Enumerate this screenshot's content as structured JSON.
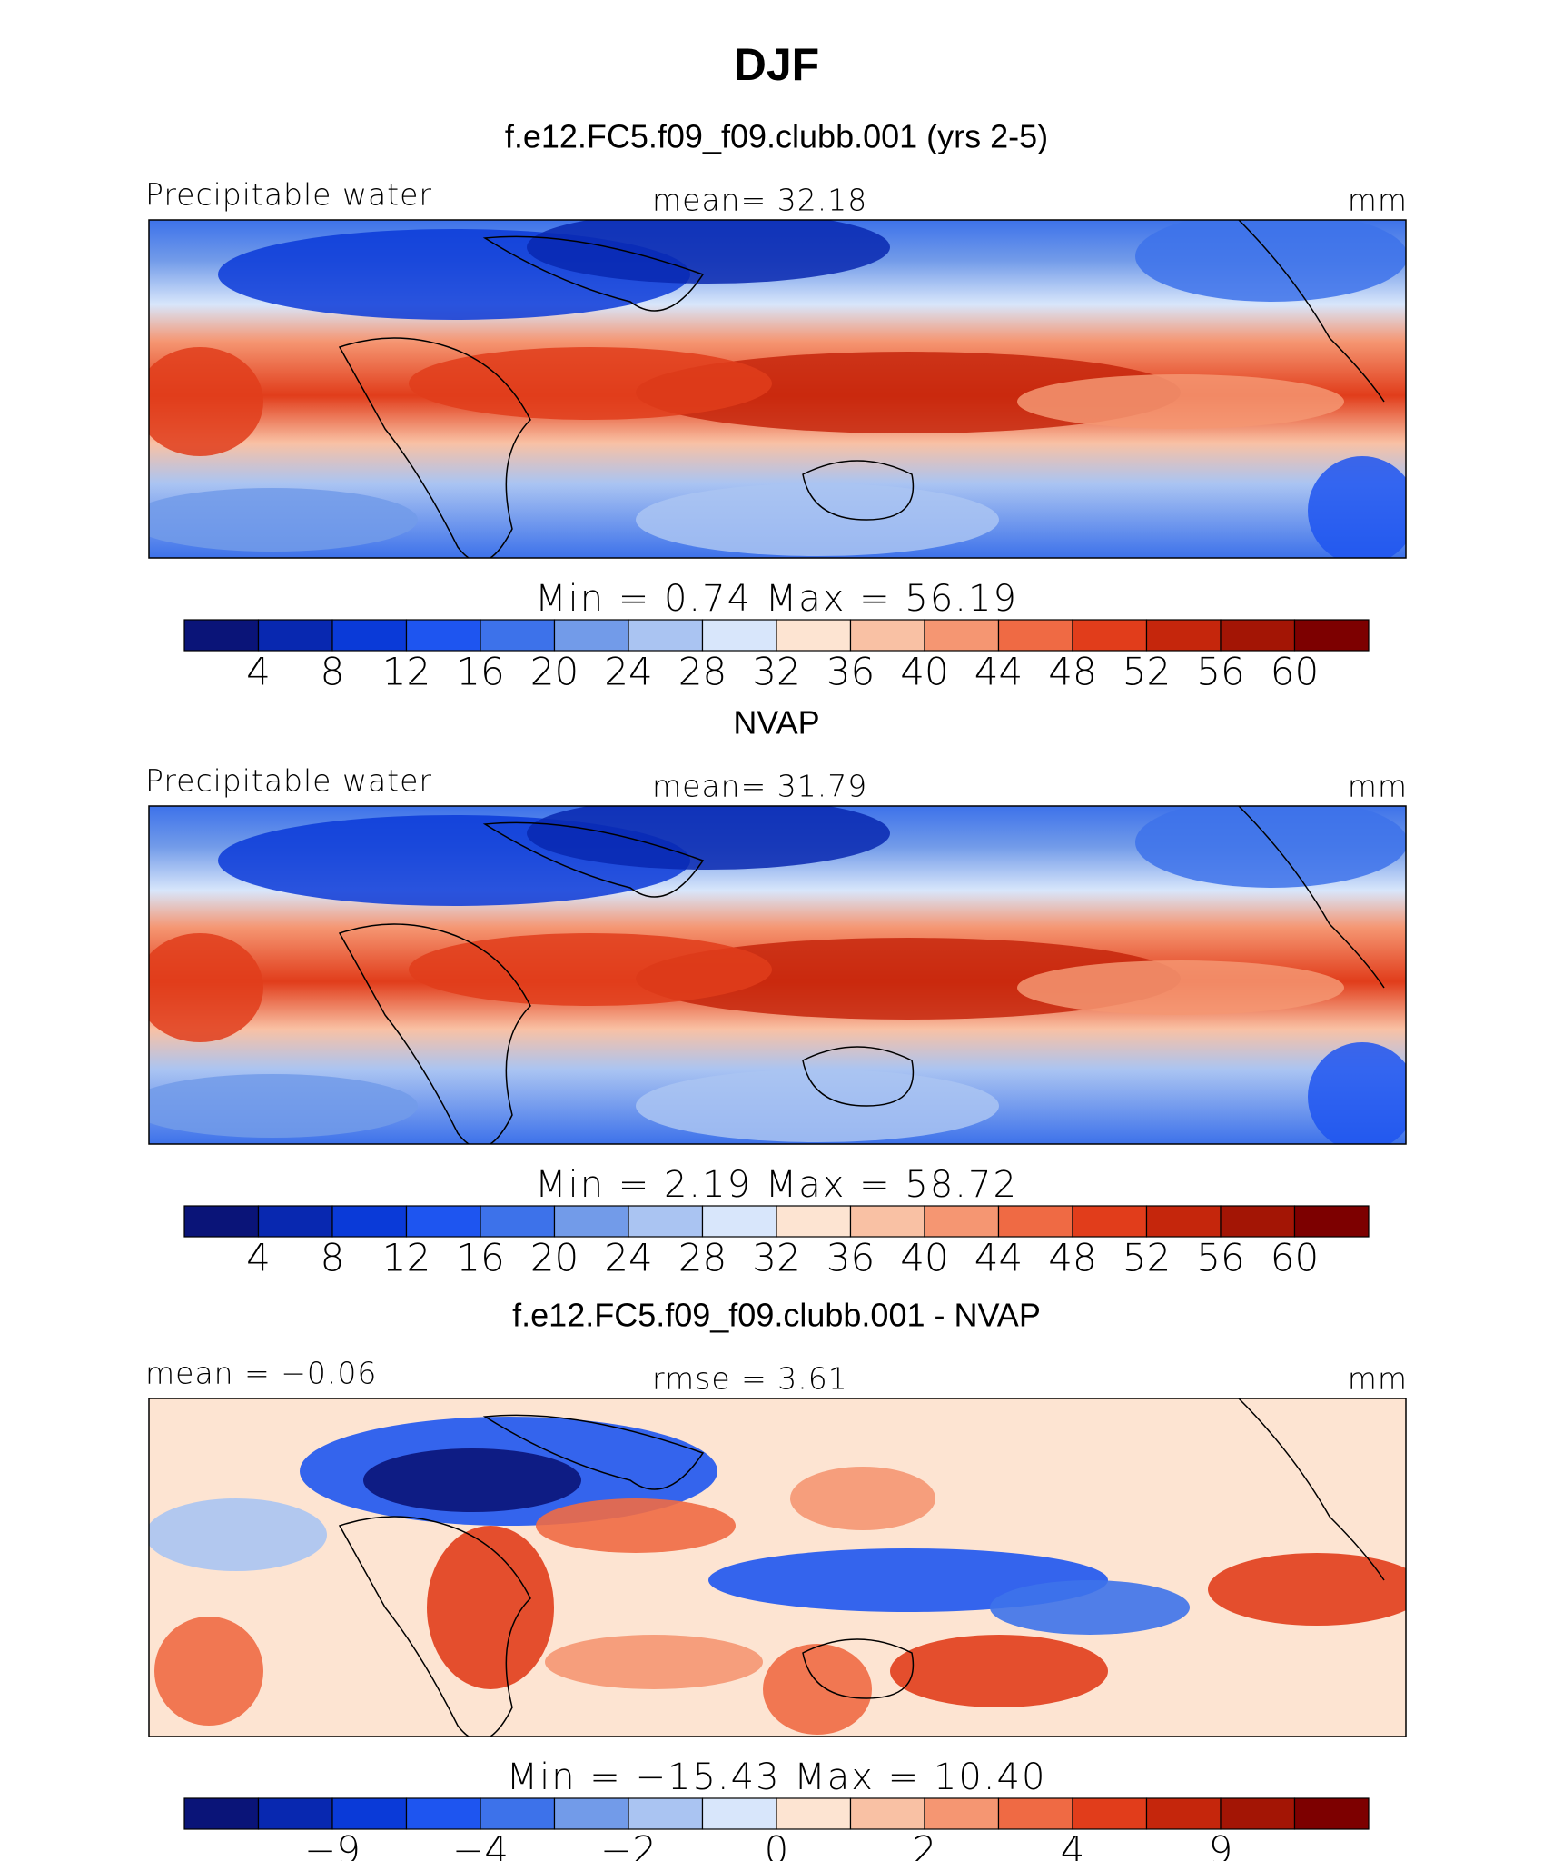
{
  "title": "DJF",
  "panels": [
    {
      "heading": "f.e12.FC5.f09_f09.clubb.001 (yrs 2-5)",
      "left": "Precipitable water",
      "center": "mean=   32.18",
      "right": "mm",
      "stats": "Min =    0.74  Max =   56.19",
      "colorbar": {
        "colors": [
          "#0a1478",
          "#0828b0",
          "#0a3ad8",
          "#1e55f0",
          "#3d72ea",
          "#729be9",
          "#aac4f2",
          "#d8e6fb",
          "#fde4d2",
          "#f9c1a4",
          "#f59672",
          "#ef6a44",
          "#e13d1b",
          "#c5260c",
          "#a31505",
          "#7d0000"
        ],
        "labels": [
          "4",
          "8",
          "12",
          "16",
          "20",
          "24",
          "28",
          "32",
          "36",
          "40",
          "44",
          "48",
          "52",
          "56",
          "60"
        ]
      }
    },
    {
      "heading": "NVAP",
      "left": "Precipitable water",
      "center": "mean=   31.79",
      "right": "mm",
      "stats": "Min =    2.19  Max =   58.72",
      "colorbar": {
        "colors": [
          "#0a1478",
          "#0828b0",
          "#0a3ad8",
          "#1e55f0",
          "#3d72ea",
          "#729be9",
          "#aac4f2",
          "#d8e6fb",
          "#fde4d2",
          "#f9c1a4",
          "#f59672",
          "#ef6a44",
          "#e13d1b",
          "#c5260c",
          "#a31505",
          "#7d0000"
        ],
        "labels": [
          "4",
          "8",
          "12",
          "16",
          "20",
          "24",
          "28",
          "32",
          "36",
          "40",
          "44",
          "48",
          "52",
          "56",
          "60"
        ]
      }
    },
    {
      "heading": "f.e12.FC5.f09_f09.clubb.001 - NVAP",
      "left": "mean =   −0.06",
      "center": "rmse =    3.61",
      "right": "mm",
      "stats": "Min = −15.43  Max =   10.40",
      "colorbar": {
        "colors": [
          "#0a1478",
          "#0828b0",
          "#0a3ad8",
          "#1e55f0",
          "#3d72ea",
          "#729be9",
          "#aac4f2",
          "#d8e6fb",
          "#fde4d2",
          "#f9c1a4",
          "#f59672",
          "#ef6a44",
          "#e13d1b",
          "#c5260c",
          "#a31505",
          "#7d0000"
        ],
        "labels": [
          "−9",
          "−4",
          "−2",
          "0",
          "2",
          "4",
          "9"
        ]
      }
    }
  ]
}
